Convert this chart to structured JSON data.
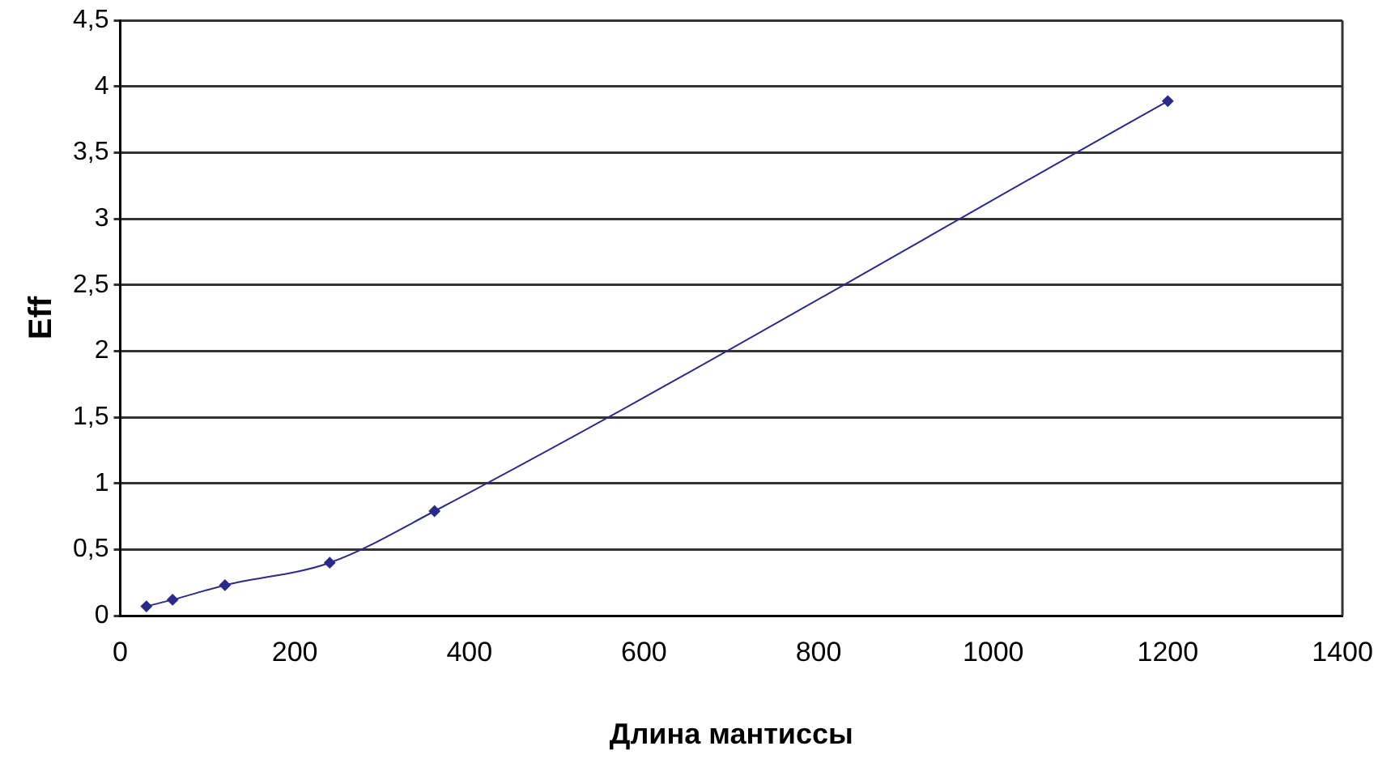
{
  "chart_data": {
    "type": "line",
    "xlabel": "Длина мантиссы",
    "ylabel": "Eff",
    "x": [
      30,
      60,
      120,
      240,
      360,
      1200
    ],
    "series": [
      {
        "color": "#2a2a8c",
        "values": [
          0.07,
          0.12,
          0.23,
          0.4,
          0.79,
          3.89
        ]
      }
    ],
    "xlim": [
      0,
      1400
    ],
    "xticks": [
      0,
      200,
      400,
      600,
      800,
      1000,
      1200,
      1400
    ],
    "ylim": [
      0,
      4.5
    ],
    "yticks": [
      0,
      {
        "value": 0.5,
        "label": "0,5"
      },
      1,
      {
        "value": 1.5,
        "label": "1,5"
      },
      2,
      {
        "value": 2.5,
        "label": "2,5"
      },
      3,
      {
        "value": 3.5,
        "label": "3,5"
      },
      4,
      {
        "value": 4.5,
        "label": "4,5"
      }
    ],
    "grid": "y",
    "legend": false,
    "marker": "diamond",
    "line_style": "solid"
  }
}
